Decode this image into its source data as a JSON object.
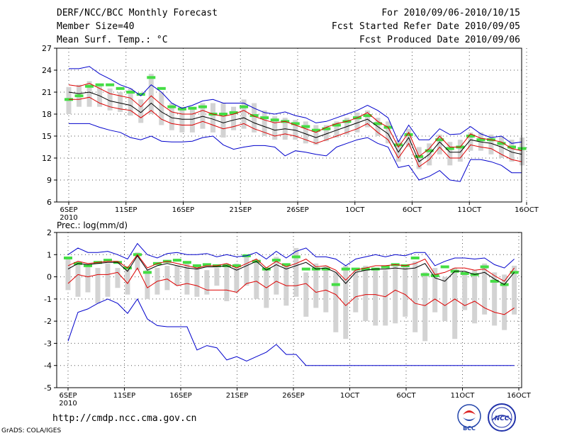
{
  "header": {
    "title": "DERF/NCC/BCC Monthly Forecast",
    "member_size": "Member Size=40",
    "variable": "Mean Surf. Temp.: °C",
    "period": "For 2010/09/06-2010/10/15",
    "fcst_started": "Fcst Started Refer Date 2010/09/05",
    "fcst_produced": "Fcst Produced Date 2010/09/06"
  },
  "footer": {
    "url": "http://cmdp.ncc.cma.gov.cn",
    "grads_credit": "GrADS: COLA/IGES",
    "logo_left_text": "BCC",
    "logo_right_text": "NCC"
  },
  "colors": {
    "max_min": "#0000cc",
    "spread": "#dd0000",
    "mean": "#000000",
    "box": "#d3d3d3",
    "climate": "#44dd44",
    "grid": "#555555"
  },
  "chart_data": [
    {
      "type": "line",
      "title": "Mean Surf. Temp.: °C",
      "x_tick_labels": [
        "6SEP",
        "11SEP",
        "16SEP",
        "21SEP",
        "26SEP",
        "1OCT",
        "6OCT",
        "11OCT",
        "16OCT"
      ],
      "x_year_label": "2010",
      "x_range_days": [
        0,
        40
      ],
      "ylim": [
        6,
        27
      ],
      "y_ticks": [
        "6",
        "9",
        "12",
        "15",
        "18",
        "21",
        "24",
        "27"
      ],
      "grid": true,
      "series": [
        {
          "name": "max",
          "values": [
            24.2,
            24.2,
            24.5,
            23.5,
            22.8,
            22.0,
            21.5,
            20.5,
            22.0,
            21.0,
            19.5,
            18.8,
            19.2,
            19.8,
            20.0,
            19.5,
            19.5,
            19.5,
            18.8,
            18.2,
            18.0,
            18.3,
            17.8,
            17.5,
            16.8,
            17.0,
            17.5,
            18.0,
            18.5,
            19.2,
            18.5,
            17.5,
            14.2,
            16.5,
            14.5,
            14.5,
            16.0,
            15.2,
            15.3,
            16.3,
            15.3,
            14.8,
            15.0,
            14.0,
            14.2
          ]
        },
        {
          "name": "spread_upper",
          "values": [
            22.0,
            21.8,
            22.2,
            21.5,
            20.8,
            20.5,
            20.2,
            19.0,
            20.5,
            19.3,
            18.3,
            18.0,
            18.0,
            18.5,
            18.0,
            17.7,
            18.0,
            18.5,
            17.7,
            17.2,
            16.8,
            17.0,
            16.5,
            16.0,
            15.5,
            16.2,
            16.7,
            17.0,
            17.5,
            18.2,
            17.0,
            16.2,
            13.5,
            15.5,
            12.2,
            13.3,
            15.0,
            13.5,
            13.5,
            15.3,
            14.7,
            14.5,
            14.2,
            13.3,
            13.0
          ]
        },
        {
          "name": "ensemble_mean",
          "values": [
            21.0,
            20.8,
            21.0,
            20.5,
            19.8,
            19.5,
            19.2,
            18.2,
            19.5,
            18.3,
            17.5,
            17.3,
            17.3,
            17.7,
            17.3,
            16.8,
            17.2,
            17.5,
            16.8,
            16.3,
            15.8,
            16.0,
            15.8,
            15.3,
            14.8,
            15.3,
            15.8,
            16.3,
            16.8,
            17.3,
            16.3,
            15.3,
            12.8,
            14.8,
            11.5,
            12.5,
            14.2,
            12.8,
            12.8,
            14.5,
            14.2,
            14.0,
            13.5,
            12.8,
            12.5
          ]
        },
        {
          "name": "spread_lower",
          "values": [
            20.0,
            20.0,
            20.3,
            19.5,
            19.0,
            18.7,
            18.5,
            17.5,
            18.5,
            17.3,
            16.7,
            16.5,
            16.5,
            17.0,
            16.5,
            16.0,
            16.3,
            16.7,
            16.0,
            15.5,
            15.0,
            15.3,
            15.0,
            14.5,
            14.0,
            14.5,
            15.0,
            15.5,
            16.0,
            16.7,
            15.5,
            14.5,
            12.0,
            14.0,
            10.8,
            11.8,
            13.5,
            12.0,
            12.0,
            13.8,
            13.5,
            13.3,
            12.5,
            11.8,
            11.5
          ]
        },
        {
          "name": "min",
          "values": [
            16.7,
            16.7,
            16.7,
            16.2,
            15.8,
            15.5,
            14.8,
            14.5,
            15.0,
            14.3,
            14.2,
            14.2,
            14.3,
            14.8,
            15.0,
            13.8,
            13.2,
            13.5,
            13.7,
            13.7,
            13.5,
            12.3,
            13.0,
            12.8,
            12.5,
            12.3,
            13.5,
            14.0,
            14.5,
            14.8,
            14.0,
            13.5,
            10.7,
            11.0,
            9.0,
            9.5,
            10.3,
            9.0,
            8.8,
            11.8,
            11.8,
            11.5,
            11.0,
            10.0,
            10.0
          ]
        },
        {
          "name": "climate",
          "values": [
            20.0,
            20.5,
            21.8,
            22.0,
            22.0,
            21.5,
            21.0,
            20.7,
            23.0,
            21.5,
            19.0,
            18.7,
            18.8,
            19.0,
            18.0,
            18.0,
            18.2,
            19.0,
            17.8,
            17.5,
            17.2,
            17.0,
            16.7,
            16.3,
            15.8,
            16.0,
            16.5,
            17.0,
            17.5,
            17.8,
            16.7,
            16.2,
            13.8,
            15.2,
            12.2,
            13.0,
            14.5,
            13.3,
            13.5,
            15.0,
            14.5,
            14.5,
            14.0,
            13.5,
            13.3
          ]
        },
        {
          "name": "box_top",
          "values": [
            21.7,
            22.0,
            22.5,
            22.0,
            21.5,
            21.0,
            21.5,
            20.0,
            23.5,
            21.0,
            19.5,
            19.0,
            19.0,
            19.5,
            19.5,
            19.5,
            19.0,
            20.0,
            19.5,
            18.5,
            17.7,
            17.5,
            17.2,
            17.0,
            16.5,
            16.5,
            17.0,
            17.5,
            18.2,
            18.5,
            17.5,
            17.0,
            14.5,
            16.0,
            13.5,
            14.0,
            15.2,
            14.2,
            14.5,
            15.5,
            15.5,
            15.2,
            15.0,
            14.5,
            14.8
          ]
        },
        {
          "name": "box_bottom",
          "values": [
            18.0,
            19.0,
            19.0,
            19.0,
            18.5,
            18.3,
            17.8,
            16.8,
            18.0,
            16.5,
            15.8,
            15.5,
            15.5,
            16.0,
            15.5,
            14.8,
            15.8,
            16.0,
            15.5,
            15.0,
            14.5,
            14.5,
            14.5,
            14.0,
            13.8,
            14.3,
            14.8,
            15.2,
            15.5,
            16.2,
            15.0,
            14.0,
            11.5,
            13.5,
            10.5,
            11.0,
            12.5,
            11.0,
            11.5,
            13.0,
            13.0,
            12.5,
            12.0,
            11.5,
            11.0
          ]
        }
      ]
    },
    {
      "type": "line",
      "title": "Prec.: log(mm/d)",
      "x_tick_labels": [
        "6SEP",
        "11SEP",
        "16SEP",
        "21SEP",
        "26SEP",
        "1OCT",
        "6OCT",
        "11OCT",
        "16OCT"
      ],
      "x_year_label": "2010",
      "x_range_days": [
        0,
        40
      ],
      "ylim": [
        -5,
        2
      ],
      "y_ticks": [
        "-5",
        "-4",
        "-3",
        "-2",
        "-1",
        "0",
        "1",
        "2"
      ],
      "grid": true,
      "series": [
        {
          "name": "max",
          "values": [
            1.0,
            1.3,
            1.1,
            1.1,
            1.15,
            1.0,
            0.8,
            1.5,
            1.0,
            0.85,
            1.05,
            1.1,
            1.0,
            1.0,
            1.05,
            0.9,
            1.0,
            0.9,
            0.95,
            1.1,
            0.8,
            1.15,
            0.85,
            1.15,
            1.3,
            0.9,
            0.9,
            0.8,
            0.5,
            0.8,
            0.9,
            1.0,
            0.9,
            1.0,
            0.95,
            1.1,
            1.1,
            0.5,
            0.7,
            0.85,
            0.85,
            0.8,
            0.85,
            0.55,
            0.4,
            0.8
          ]
        },
        {
          "name": "spread_upper",
          "values": [
            0.5,
            0.7,
            0.6,
            0.65,
            0.7,
            0.7,
            0.4,
            1.0,
            0.4,
            0.6,
            0.7,
            0.6,
            0.5,
            0.4,
            0.5,
            0.5,
            0.6,
            0.4,
            0.6,
            0.8,
            0.4,
            0.7,
            0.45,
            0.6,
            0.8,
            0.45,
            0.5,
            0.3,
            -0.15,
            0.3,
            0.4,
            0.5,
            0.5,
            0.55,
            0.5,
            0.6,
            0.8,
            0.1,
            0.2,
            0.4,
            0.4,
            0.3,
            0.35,
            0.05,
            -0.2,
            0.4
          ]
        },
        {
          "name": "ensemble_mean",
          "values": [
            0.35,
            0.6,
            0.55,
            0.6,
            0.65,
            0.65,
            0.25,
            0.95,
            0.3,
            0.5,
            0.6,
            0.5,
            0.4,
            0.35,
            0.45,
            0.45,
            0.5,
            0.3,
            0.5,
            0.7,
            0.3,
            0.55,
            0.35,
            0.5,
            0.65,
            0.35,
            0.4,
            0.2,
            -0.3,
            0.2,
            0.3,
            0.35,
            0.35,
            0.4,
            0.35,
            0.4,
            0.6,
            -0.05,
            -0.2,
            0.25,
            0.25,
            0.1,
            0.2,
            -0.1,
            -0.35,
            0.2
          ]
        },
        {
          "name": "spread_lower",
          "values": [
            -0.3,
            0.1,
            0.0,
            0.1,
            0.1,
            0.2,
            -0.3,
            0.4,
            -0.5,
            -0.2,
            -0.1,
            -0.4,
            -0.3,
            -0.4,
            -0.6,
            -0.6,
            -0.6,
            -0.7,
            -0.3,
            -0.2,
            -0.5,
            -0.2,
            -0.4,
            -0.4,
            -0.3,
            -0.7,
            -0.6,
            -0.8,
            -1.3,
            -0.9,
            -0.8,
            -0.8,
            -0.9,
            -0.6,
            -0.8,
            -1.2,
            -1.3,
            -1.0,
            -1.3,
            -1.0,
            -1.3,
            -1.1,
            -1.4,
            -1.6,
            -1.7,
            -1.4
          ]
        },
        {
          "name": "min",
          "values": [
            -2.9,
            -1.6,
            -1.45,
            -1.2,
            -1.0,
            -1.2,
            -1.65,
            -1.0,
            -1.9,
            -2.2,
            -2.25,
            -2.25,
            -2.25,
            -3.3,
            -3.1,
            -3.2,
            -3.75,
            -3.6,
            -3.8,
            -3.6,
            -3.4,
            -3.05,
            -3.5,
            -3.5,
            -4.0,
            -4.0,
            -4.0,
            -4.0,
            -4.0,
            -4.0,
            -4.0,
            -4.0,
            -4.0,
            -4.0,
            -4.0,
            -4.0,
            -4.0,
            -4.0,
            -4.0,
            -4.0,
            -4.0,
            -4.0,
            -4.0,
            -4.0,
            -4.0,
            -4.0
          ]
        },
        {
          "name": "climate",
          "values": [
            0.85,
            0.6,
            0.5,
            0.65,
            0.75,
            0.65,
            0.4,
            1.0,
            0.2,
            0.6,
            0.7,
            0.75,
            0.65,
            0.5,
            0.55,
            0.5,
            0.5,
            0.5,
            0.95,
            0.7,
            0.35,
            0.75,
            0.55,
            0.9,
            0.35,
            0.35,
            0.35,
            -0.35,
            0.35,
            0.35,
            0.35,
            0.35,
            0.45,
            0.55,
            0.5,
            0.85,
            0.1,
            0.05,
            0.45,
            0.25,
            0.15,
            0.1,
            0.45,
            -0.2,
            -0.35,
            0.2
          ]
        },
        {
          "name": "box_top",
          "values": [
            0.8,
            0.6,
            0.5,
            0.4,
            0.6,
            0.4,
            0.4,
            1.1,
            0.3,
            0.4,
            0.5,
            0.5,
            0.6,
            0.5,
            0.3,
            0.4,
            0.6,
            0.6,
            0.9,
            0.7,
            0.4,
            0.9,
            0.5,
            1.3,
            0.2,
            0.6,
            0.5,
            0.2,
            0.5,
            0.4,
            0.5,
            0.4,
            0.3,
            0.6,
            0.5,
            0.7,
            0.2,
            0.4,
            0.0,
            0.4,
            0.2,
            0.3,
            0.6,
            0.2,
            0.1,
            0.5
          ]
        },
        {
          "name": "box_bottom",
          "values": [
            -0.6,
            -0.9,
            -0.7,
            -1.2,
            -0.9,
            -0.5,
            -0.8,
            0.3,
            -1.0,
            -0.8,
            -0.6,
            -0.4,
            -0.8,
            -0.9,
            -0.8,
            -0.4,
            -1.1,
            -0.7,
            -0.4,
            -1.0,
            -1.4,
            -0.8,
            -1.3,
            -0.9,
            -1.8,
            -1.4,
            -1.6,
            -2.5,
            -2.8,
            -1.6,
            -2.0,
            -2.2,
            -2.2,
            -2.1,
            -1.8,
            -2.5,
            -2.9,
            -1.6,
            -2.0,
            -2.8,
            -1.5,
            -2.1,
            -1.7,
            -2.2,
            -2.4,
            -1.7
          ]
        }
      ]
    }
  ]
}
